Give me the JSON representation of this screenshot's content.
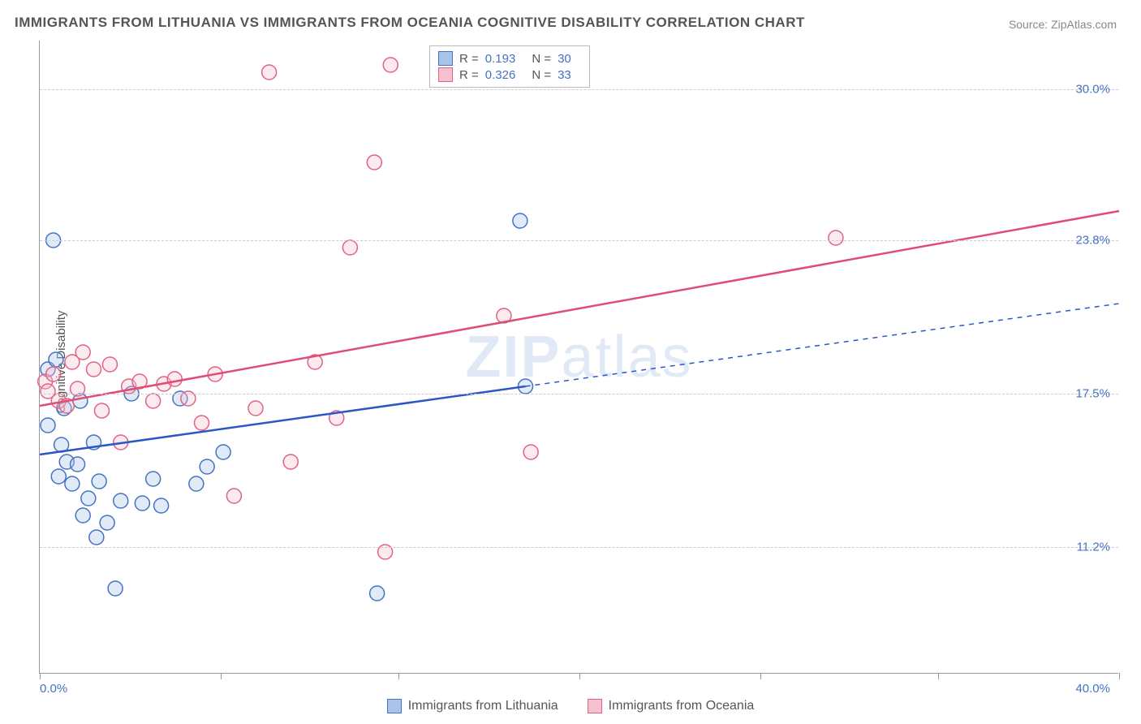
{
  "title": "IMMIGRANTS FROM LITHUANIA VS IMMIGRANTS FROM OCEANIA COGNITIVE DISABILITY CORRELATION CHART",
  "source_label": "Source: ZipAtlas.com",
  "yaxis_label": "Cognitive Disability",
  "watermark": {
    "bold": "ZIP",
    "rest": "atlas"
  },
  "chart": {
    "type": "scatter",
    "background_color": "#ffffff",
    "grid_color": "#cccccc",
    "axis_color": "#999999",
    "xlim": [
      0.0,
      40.0
    ],
    "ylim": [
      6.0,
      32.0
    ],
    "xtick_positions": [
      0,
      6.7,
      13.3,
      20.0,
      26.7,
      33.3,
      40.0
    ],
    "xaxis_start_label": "0.0%",
    "xaxis_end_label": "40.0%",
    "yticks": [
      {
        "v": 11.2,
        "label": "11.2%"
      },
      {
        "v": 17.5,
        "label": "17.5%"
      },
      {
        "v": 23.8,
        "label": "23.8%"
      },
      {
        "v": 30.0,
        "label": "30.0%"
      }
    ],
    "marker_radius": 9,
    "marker_stroke_width": 1.5,
    "marker_fill_opacity": 0.35,
    "line_width": 2.5,
    "series": [
      {
        "name": "Immigrants from Lithuania",
        "color_fill": "#a8c4e8",
        "color_stroke": "#4472c4",
        "R": "0.193",
        "N": "30",
        "trend": {
          "x1": 0.0,
          "y1": 15.0,
          "x2": 18.0,
          "y2": 17.8,
          "dash_x2": 40.0,
          "dash_y2": 21.2,
          "color": "#2a56c6"
        },
        "points": [
          [
            0.3,
            16.2
          ],
          [
            0.3,
            18.5
          ],
          [
            0.5,
            23.8
          ],
          [
            0.6,
            18.9
          ],
          [
            0.7,
            14.1
          ],
          [
            0.8,
            15.4
          ],
          [
            0.9,
            16.9
          ],
          [
            1.0,
            14.7
          ],
          [
            1.2,
            13.8
          ],
          [
            1.4,
            14.6
          ],
          [
            1.5,
            17.2
          ],
          [
            1.6,
            12.5
          ],
          [
            1.8,
            13.2
          ],
          [
            2.0,
            15.5
          ],
          [
            2.1,
            11.6
          ],
          [
            2.2,
            13.9
          ],
          [
            2.5,
            12.2
          ],
          [
            2.8,
            9.5
          ],
          [
            3.0,
            13.1
          ],
          [
            3.4,
            17.5
          ],
          [
            3.8,
            13.0
          ],
          [
            4.2,
            14.0
          ],
          [
            4.5,
            12.9
          ],
          [
            5.2,
            17.3
          ],
          [
            5.8,
            13.8
          ],
          [
            6.2,
            14.5
          ],
          [
            6.8,
            15.1
          ],
          [
            12.5,
            9.3
          ],
          [
            17.8,
            24.6
          ],
          [
            18.0,
            17.8
          ]
        ]
      },
      {
        "name": "Immigrants from Oceania",
        "color_fill": "#f4c2cf",
        "color_stroke": "#e06287",
        "R": "0.326",
        "N": "33",
        "trend": {
          "x1": 0.0,
          "y1": 17.0,
          "x2": 40.0,
          "y2": 25.0,
          "color": "#e04d74"
        },
        "points": [
          [
            0.2,
            18.0
          ],
          [
            0.3,
            17.6
          ],
          [
            0.5,
            18.3
          ],
          [
            0.7,
            17.2
          ],
          [
            1.0,
            17.0
          ],
          [
            1.2,
            18.8
          ],
          [
            1.4,
            17.7
          ],
          [
            1.6,
            19.2
          ],
          [
            2.0,
            18.5
          ],
          [
            2.3,
            16.8
          ],
          [
            2.6,
            18.7
          ],
          [
            3.0,
            15.5
          ],
          [
            3.3,
            17.8
          ],
          [
            3.7,
            18.0
          ],
          [
            4.2,
            17.2
          ],
          [
            4.6,
            17.9
          ],
          [
            5.0,
            18.1
          ],
          [
            5.5,
            17.3
          ],
          [
            6.0,
            16.3
          ],
          [
            6.5,
            18.3
          ],
          [
            7.2,
            13.3
          ],
          [
            8.0,
            16.9
          ],
          [
            8.5,
            30.7
          ],
          [
            9.3,
            14.7
          ],
          [
            10.2,
            18.8
          ],
          [
            11.0,
            16.5
          ],
          [
            11.5,
            23.5
          ],
          [
            12.4,
            27.0
          ],
          [
            12.8,
            11.0
          ],
          [
            13.0,
            31.0
          ],
          [
            17.2,
            20.7
          ],
          [
            18.2,
            15.1
          ],
          [
            29.5,
            23.9
          ]
        ]
      }
    ],
    "stat_legend_labels": {
      "R": "R =",
      "N": "N ="
    }
  },
  "bottom_legend": [
    {
      "label": "Immigrants from Lithuania",
      "fill": "#a8c4e8",
      "stroke": "#4472c4"
    },
    {
      "label": "Immigrants from Oceania",
      "fill": "#f4c2cf",
      "stroke": "#e06287"
    }
  ]
}
